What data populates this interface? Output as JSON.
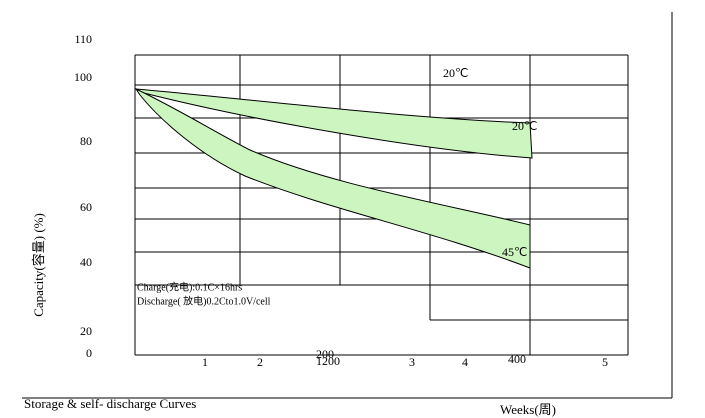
{
  "axis": {
    "y_label": "Capacity(容量) (%)",
    "x_label": "Weeks(周)",
    "y_ticks": [
      "110",
      "100",
      "80",
      "60",
      "40",
      "20",
      "0"
    ],
    "x_ticks": [
      "1",
      "2",
      "3",
      "4",
      "5"
    ],
    "extra_labels": [
      "200",
      "1200",
      "400"
    ]
  },
  "annotations": {
    "temp_top": "20℃",
    "temp_mid": "20℃",
    "temp_low": "45℃",
    "charge": "Charge(充电):0.1C×16hrs",
    "discharge": "Discharge( 放电)0.2Cto1.0V/cell"
  },
  "caption": "Storage & self- discharge Curves"
}
